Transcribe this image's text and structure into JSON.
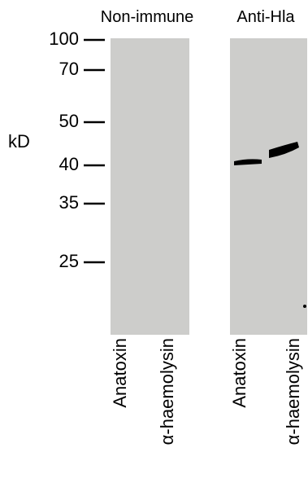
{
  "panels": [
    {
      "title": "Non-immune",
      "lanes": [
        "Anatoxin",
        "α-haemolysin"
      ]
    },
    {
      "title": "Anti-Hla",
      "lanes": [
        "Anatoxin",
        "α-haemolysin"
      ]
    }
  ],
  "markers": {
    "unit": "kD",
    "labels": [
      "100",
      "70",
      "50",
      "40",
      "35",
      "25"
    ]
  }
}
